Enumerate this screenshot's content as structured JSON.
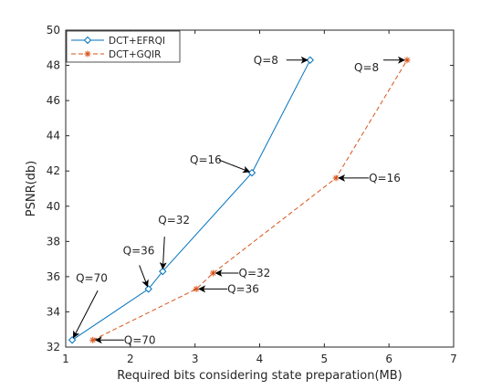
{
  "chart_data": {
    "type": "line",
    "title": "",
    "xlabel": "Required bits considering state preparation(MB)",
    "ylabel": "PSNR(db)",
    "xlim": [
      1,
      7
    ],
    "ylim": [
      32,
      50
    ],
    "xticks": [
      "1",
      "2",
      "3",
      "4",
      "5",
      "6",
      "7"
    ],
    "yticks": [
      "32",
      "34",
      "36",
      "38",
      "40",
      "42",
      "44",
      "46",
      "48",
      "50"
    ],
    "grid": false,
    "legend_position": "top-left",
    "series": [
      {
        "name": "DCT+EFRQI",
        "color": "#0072bd",
        "marker": "diamond",
        "line_style": "solid",
        "x": [
          1.1,
          2.28,
          2.5,
          3.88,
          4.78
        ],
        "y": [
          32.4,
          35.3,
          36.3,
          41.9,
          48.3
        ]
      },
      {
        "name": "DCT+GQIR",
        "color": "#d95319",
        "marker": "asterisk",
        "line_style": "dashed",
        "x": [
          1.42,
          3.02,
          3.28,
          5.18,
          6.28
        ],
        "y": [
          32.4,
          35.3,
          36.2,
          41.6,
          48.3
        ]
      }
    ],
    "annotations": [
      {
        "text": "Q=8",
        "series": 0,
        "point": 4
      },
      {
        "text": "Q=16",
        "series": 0,
        "point": 3
      },
      {
        "text": "Q=32",
        "series": 0,
        "point": 2
      },
      {
        "text": "Q=36",
        "series": 0,
        "point": 1
      },
      {
        "text": "Q=70",
        "series": 0,
        "point": 0
      },
      {
        "text": "Q=8",
        "series": 1,
        "point": 4
      },
      {
        "text": "Q=16",
        "series": 1,
        "point": 3
      },
      {
        "text": "Q=32",
        "series": 1,
        "point": 2
      },
      {
        "text": "Q=36",
        "series": 1,
        "point": 1
      },
      {
        "text": "Q=70",
        "series": 1,
        "point": 0
      }
    ]
  }
}
